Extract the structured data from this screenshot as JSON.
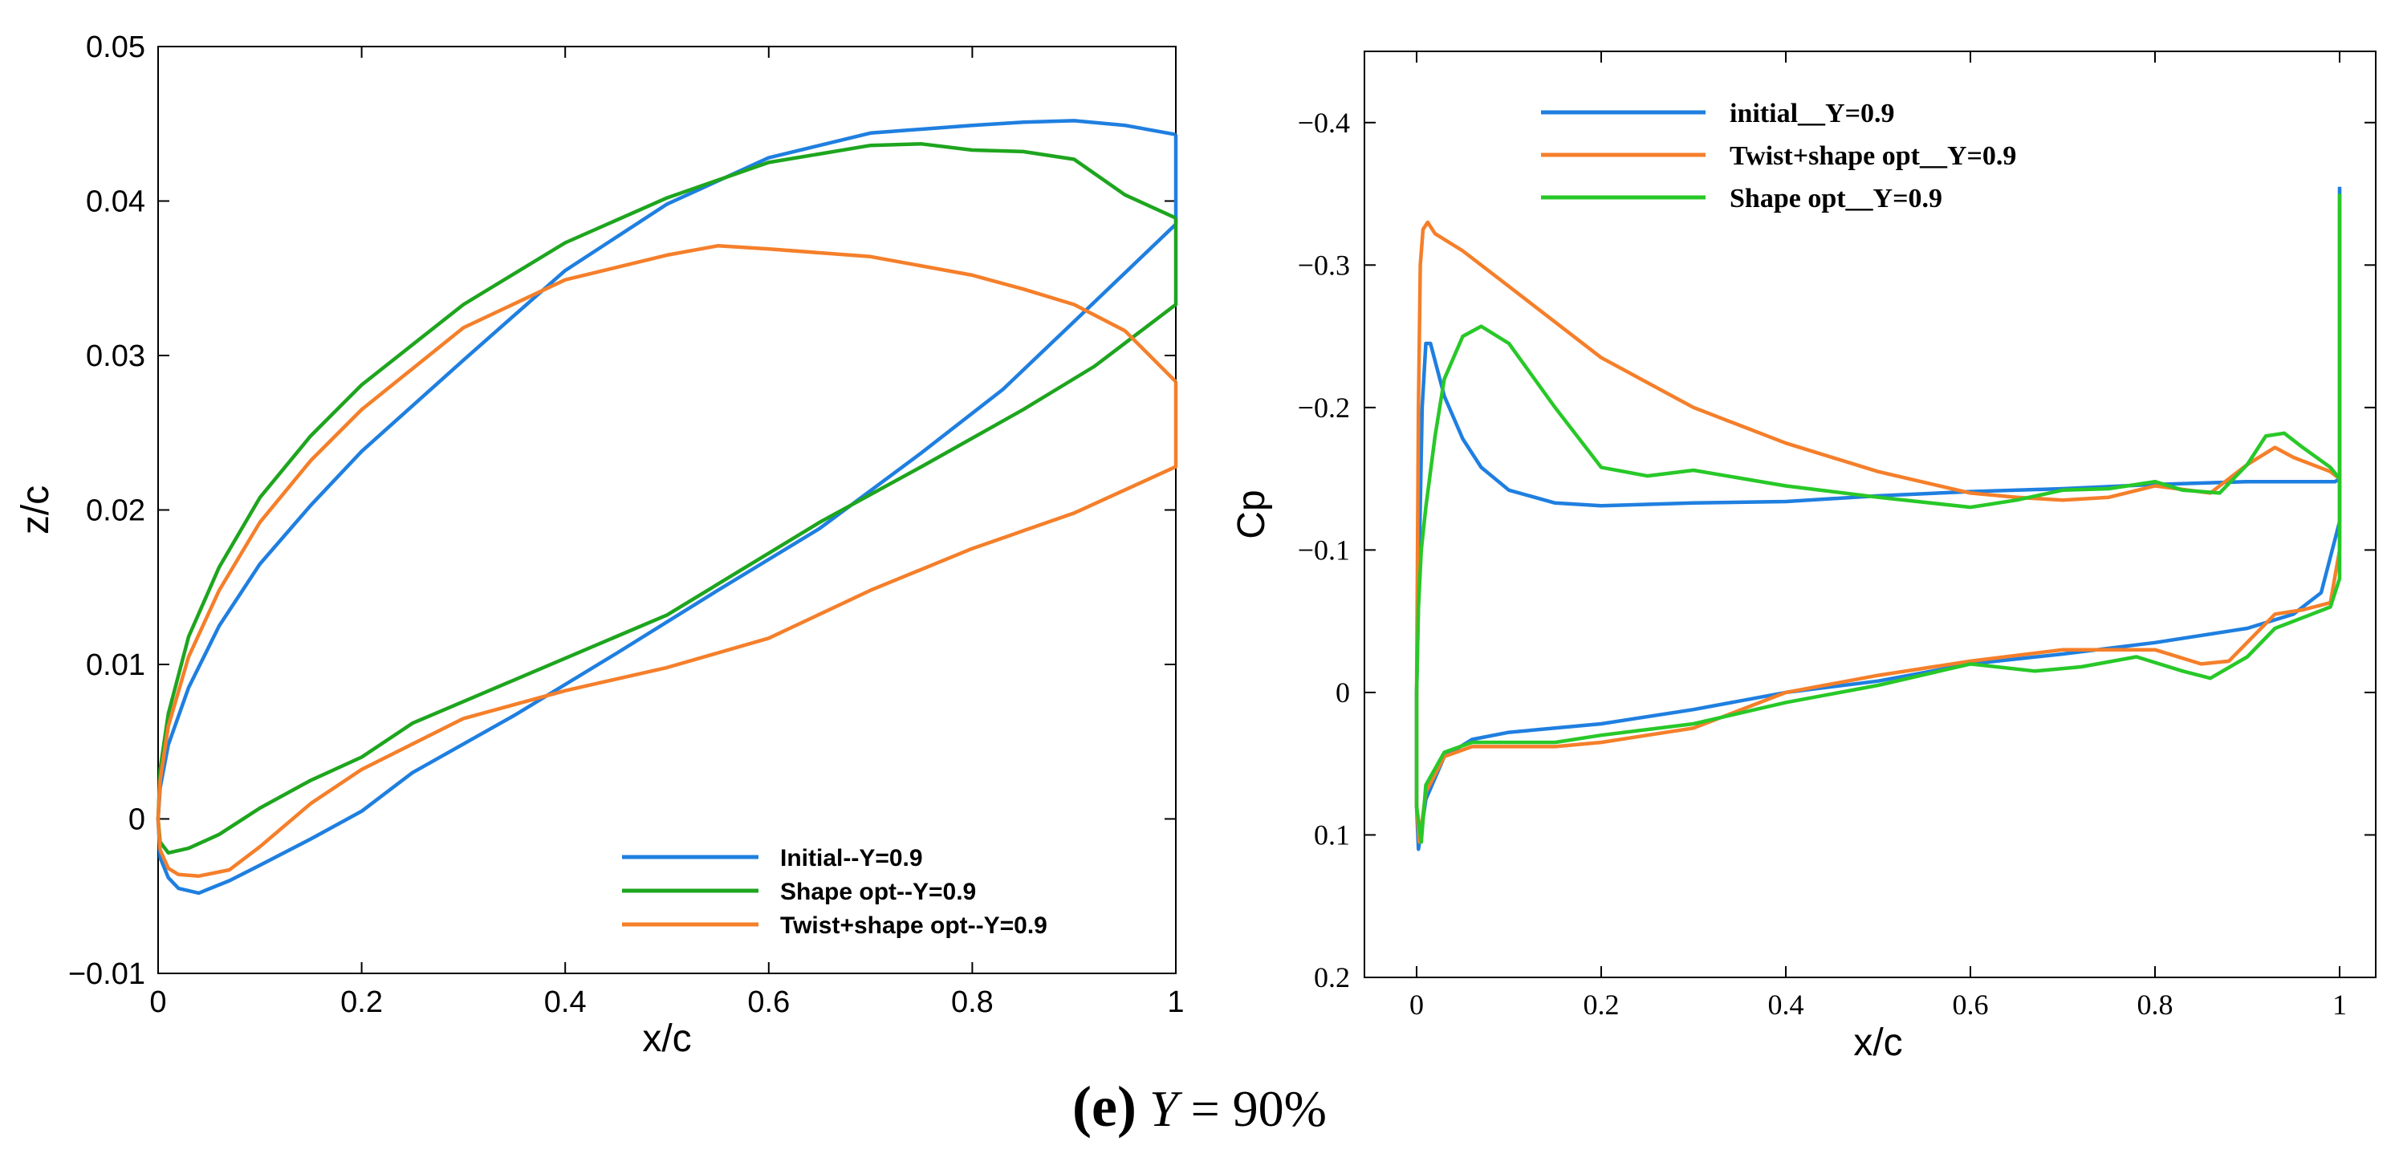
{
  "caption": {
    "open": "(",
    "letter": "e",
    "close": ")",
    "var": "Y",
    "rest": " = 90%"
  },
  "chart_data": [
    {
      "type": "line",
      "title": "",
      "xlabel": "x/c",
      "ylabel": "z/c",
      "xlim": [
        0,
        1
      ],
      "ylim": [
        -0.01,
        0.05
      ],
      "xticks": [
        "0",
        "0.2",
        "0.4",
        "0.6",
        "0.8",
        "1"
      ],
      "yticks": [
        "−0.01",
        "0",
        "0.01",
        "0.02",
        "0.03",
        "0.04",
        "0.05"
      ],
      "legend_position": "lower-right",
      "series": [
        {
          "name": "Initial--Y=0.9",
          "color": "#1f7fe0",
          "x": [
            1.0,
            0.95,
            0.9,
            0.85,
            0.8,
            0.7,
            0.6,
            0.5,
            0.4,
            0.3,
            0.2,
            0.15,
            0.1,
            0.06,
            0.03,
            0.01,
            0.002,
            0.0,
            0.002,
            0.01,
            0.02,
            0.04,
            0.07,
            0.1,
            0.15,
            0.2,
            0.25,
            0.35,
            0.45,
            0.55,
            0.65,
            0.75,
            0.83,
            0.9,
            1.0,
            1.0
          ],
          "y": [
            0.0443,
            0.0449,
            0.0452,
            0.0451,
            0.0449,
            0.0444,
            0.0428,
            0.0398,
            0.0355,
            0.0297,
            0.0238,
            0.0203,
            0.0165,
            0.0125,
            0.0085,
            0.0048,
            0.002,
            0.0,
            -0.0025,
            -0.0038,
            -0.0045,
            -0.0048,
            -0.004,
            -0.003,
            -0.0013,
            0.0005,
            0.003,
            0.0067,
            0.0107,
            0.0148,
            0.0188,
            0.0237,
            0.0278,
            0.0322,
            0.0385,
            0.0443
          ]
        },
        {
          "name": "Shape opt--Y=0.9",
          "color": "#1ea51e",
          "x": [
            1.0,
            0.95,
            0.9,
            0.85,
            0.8,
            0.75,
            0.7,
            0.6,
            0.5,
            0.4,
            0.3,
            0.2,
            0.15,
            0.1,
            0.06,
            0.03,
            0.01,
            0.002,
            0.0,
            0.002,
            0.01,
            0.03,
            0.06,
            0.1,
            0.15,
            0.2,
            0.25,
            0.35,
            0.5,
            0.65,
            0.75,
            0.85,
            0.92,
            1.0,
            1.0
          ],
          "y": [
            0.0389,
            0.0404,
            0.0427,
            0.0432,
            0.0433,
            0.0437,
            0.0436,
            0.0425,
            0.0402,
            0.0373,
            0.0333,
            0.0281,
            0.0248,
            0.0208,
            0.0163,
            0.0118,
            0.0068,
            0.0032,
            0.0,
            -0.0015,
            -0.0022,
            -0.0019,
            -0.001,
            0.0007,
            0.0025,
            0.004,
            0.0062,
            0.009,
            0.0132,
            0.0192,
            0.0228,
            0.0265,
            0.0293,
            0.0333,
            0.0389
          ]
        },
        {
          "name": "Twist+shape opt--Y=0.9",
          "color": "#f57f2a",
          "x": [
            1.0,
            0.95,
            0.9,
            0.85,
            0.8,
            0.7,
            0.6,
            0.55,
            0.5,
            0.4,
            0.3,
            0.2,
            0.15,
            0.1,
            0.06,
            0.03,
            0.01,
            0.002,
            0.0,
            0.002,
            0.01,
            0.02,
            0.04,
            0.07,
            0.1,
            0.15,
            0.2,
            0.3,
            0.4,
            0.5,
            0.6,
            0.7,
            0.8,
            0.9,
            1.0,
            1.0
          ],
          "y": [
            0.0283,
            0.0316,
            0.0333,
            0.0343,
            0.0352,
            0.0364,
            0.0369,
            0.0371,
            0.0365,
            0.0349,
            0.0318,
            0.0265,
            0.0232,
            0.0192,
            0.0148,
            0.0105,
            0.006,
            0.0025,
            0.0,
            -0.002,
            -0.0032,
            -0.0036,
            -0.0037,
            -0.0033,
            -0.0018,
            0.001,
            0.0032,
            0.0065,
            0.0083,
            0.0098,
            0.0117,
            0.0148,
            0.0175,
            0.0198,
            0.0228,
            0.0283
          ]
        }
      ]
    },
    {
      "type": "line",
      "title": "",
      "xlabel": "x/c",
      "ylabel": "Cp",
      "xlim": [
        0,
        1
      ],
      "ylim": [
        0.2,
        -0.45
      ],
      "y_inverted": true,
      "xticks": [
        "0",
        "0.2",
        "0.4",
        "0.6",
        "0.8",
        "1"
      ],
      "yticks": [
        "−0.4",
        "−0.3",
        "−0.2",
        "−0.1",
        "0",
        "0.1",
        "0.2"
      ],
      "legend_position": "top",
      "series": [
        {
          "name": "initial__Y=0.9",
          "color": "#1f7fe0",
          "x": [
            1.0,
            0.995,
            0.99,
            0.95,
            0.9,
            0.8,
            0.7,
            0.6,
            0.5,
            0.4,
            0.3,
            0.2,
            0.15,
            0.1,
            0.07,
            0.05,
            0.03,
            0.015,
            0.01,
            0.006,
            0.003,
            0.0,
            0.0,
            0.002,
            0.01,
            0.03,
            0.06,
            0.1,
            0.2,
            0.3,
            0.4,
            0.5,
            0.6,
            0.7,
            0.8,
            0.9,
            0.95,
            0.98,
            1.0,
            1.0
          ],
          "y": [
            -0.15,
            -0.148,
            -0.148,
            -0.148,
            -0.148,
            -0.146,
            -0.143,
            -0.141,
            -0.138,
            -0.134,
            -0.133,
            -0.131,
            -0.133,
            -0.142,
            -0.158,
            -0.178,
            -0.208,
            -0.245,
            -0.245,
            -0.2,
            -0.1,
            0.0,
            0.08,
            0.11,
            0.075,
            0.045,
            0.033,
            0.028,
            0.022,
            0.012,
            0.0,
            -0.008,
            -0.02,
            -0.027,
            -0.035,
            -0.045,
            -0.055,
            -0.07,
            -0.12,
            -0.355
          ]
        },
        {
          "name": "Twist+shape opt__Y=0.9",
          "color": "#f57f2a",
          "x": [
            1.0,
            0.99,
            0.95,
            0.93,
            0.9,
            0.86,
            0.8,
            0.75,
            0.7,
            0.65,
            0.6,
            0.5,
            0.4,
            0.3,
            0.2,
            0.1,
            0.05,
            0.02,
            0.012,
            0.007,
            0.004,
            0.002,
            0.0,
            0.0,
            0.003,
            0.01,
            0.03,
            0.06,
            0.1,
            0.15,
            0.2,
            0.3,
            0.4,
            0.5,
            0.6,
            0.7,
            0.75,
            0.8,
            0.85,
            0.88,
            0.93,
            0.96,
            0.99,
            1.0,
            1.0
          ],
          "y": [
            -0.15,
            -0.155,
            -0.165,
            -0.172,
            -0.16,
            -0.14,
            -0.145,
            -0.137,
            -0.135,
            -0.137,
            -0.14,
            -0.155,
            -0.175,
            -0.2,
            -0.235,
            -0.285,
            -0.31,
            -0.322,
            -0.33,
            -0.325,
            -0.3,
            -0.2,
            0.0,
            0.08,
            0.105,
            0.07,
            0.045,
            0.038,
            0.038,
            0.038,
            0.035,
            0.025,
            0.0,
            -0.012,
            -0.022,
            -0.03,
            -0.03,
            -0.03,
            -0.02,
            -0.022,
            -0.055,
            -0.058,
            -0.063,
            -0.1,
            -0.34
          ]
        },
        {
          "name": "Shape opt__Y=0.9",
          "color": "#28c828",
          "x": [
            1.0,
            0.99,
            0.96,
            0.94,
            0.92,
            0.9,
            0.87,
            0.83,
            0.8,
            0.75,
            0.7,
            0.65,
            0.6,
            0.5,
            0.4,
            0.3,
            0.25,
            0.2,
            0.15,
            0.1,
            0.07,
            0.05,
            0.03,
            0.02,
            0.01,
            0.005,
            0.002,
            0.0,
            0.0,
            0.005,
            0.01,
            0.03,
            0.06,
            0.1,
            0.15,
            0.2,
            0.3,
            0.4,
            0.5,
            0.6,
            0.67,
            0.72,
            0.78,
            0.83,
            0.86,
            0.9,
            0.93,
            0.97,
            0.99,
            1.0,
            1.0
          ],
          "y": [
            -0.15,
            -0.158,
            -0.172,
            -0.182,
            -0.18,
            -0.16,
            -0.14,
            -0.142,
            -0.148,
            -0.143,
            -0.142,
            -0.135,
            -0.13,
            -0.137,
            -0.145,
            -0.156,
            -0.152,
            -0.158,
            -0.2,
            -0.245,
            -0.257,
            -0.25,
            -0.22,
            -0.18,
            -0.13,
            -0.1,
            -0.06,
            0.0,
            0.08,
            0.105,
            0.065,
            0.042,
            0.035,
            0.035,
            0.035,
            0.03,
            0.022,
            0.007,
            -0.005,
            -0.02,
            -0.015,
            -0.018,
            -0.025,
            -0.015,
            -0.01,
            -0.025,
            -0.045,
            -0.055,
            -0.06,
            -0.08,
            -0.35
          ]
        }
      ]
    }
  ]
}
